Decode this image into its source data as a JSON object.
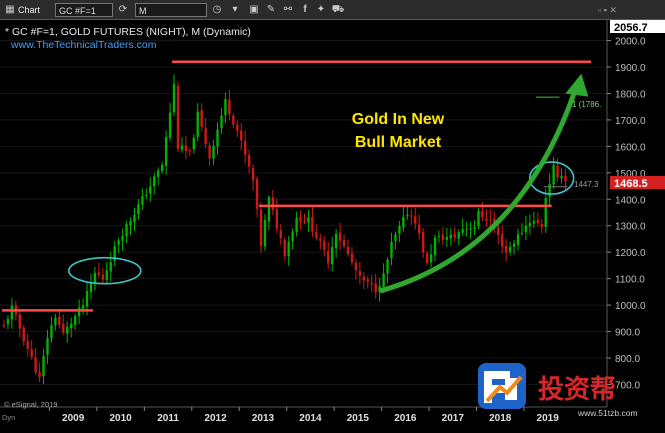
{
  "toolbar": {
    "app_label": "Chart",
    "symbol_value": "GC #F=1",
    "interval_value": "M",
    "icons": [
      "chart-icon",
      "chevron-down-icon",
      "refresh-icon",
      "clock-icon",
      "save-icon",
      "tools-icon",
      "link-icon",
      "facebook-icon",
      "twitter-icon",
      "cart-icon"
    ]
  },
  "header": {
    "title": "* GC #F=1, GOLD FUTURES (NIGHT), M (Dynamic)",
    "website": "www.TheTechnicalTraders.com"
  },
  "annotation": {
    "line1": "Gold In New",
    "line2": "Bull Market"
  },
  "price_labels": {
    "top": "2056.7",
    "last": "1468.5",
    "level": "1447.3",
    "fib": "1 (1786.",
    "copyright": "© eSignal, 2019",
    "corner": "Dyn"
  },
  "colors": {
    "background": "#000000",
    "up_candle": "#00b400",
    "down_candle": "#d01818",
    "resistance_line": "#ff4a4a",
    "arrow": "#2fa82f",
    "ellipse": "#3fc6c6",
    "annotation_text": "#ffe600",
    "last_price_bg": "#d42020"
  },
  "watermark": {
    "brand": "投资帮",
    "url": "www.51tzb.com"
  },
  "chart_data": {
    "type": "candlestick",
    "interval": "monthly",
    "x_axis": {
      "tick_labels": [
        "2009",
        "2010",
        "2011",
        "2012",
        "2013",
        "2014",
        "2015",
        "2016",
        "2017",
        "2018",
        "2019"
      ]
    },
    "y_axis": {
      "range": [
        700,
        2056.7
      ],
      "tick_labels": [
        "700.0",
        "800.0",
        "900.0",
        "1000.0",
        "1100.0",
        "1200.0",
        "1300.0",
        "1400.0",
        "1500.0",
        "1600.0",
        "1700.0",
        "1800.0",
        "1900.0",
        "2000.0"
      ]
    },
    "anchors": [
      [
        "2008-01",
        920
      ],
      [
        "2008-03",
        990
      ],
      [
        "2008-10",
        720
      ],
      [
        "2008-12",
        880
      ],
      [
        "2009-02",
        960
      ],
      [
        "2009-04",
        890
      ],
      [
        "2009-09",
        1000
      ],
      [
        "2009-12",
        1120
      ],
      [
        "2010-02",
        1100
      ],
      [
        "2010-06",
        1250
      ],
      [
        "2010-12",
        1400
      ],
      [
        "2011-05",
        1530
      ],
      [
        "2011-08",
        1830
      ],
      [
        "2011-09",
        1600
      ],
      [
        "2011-12",
        1570
      ],
      [
        "2012-02",
        1720
      ],
      [
        "2012-05",
        1560
      ],
      [
        "2012-09",
        1770
      ],
      [
        "2012-12",
        1660
      ],
      [
        "2013-04",
        1470
      ],
      [
        "2013-06",
        1230
      ],
      [
        "2013-08",
        1400
      ],
      [
        "2013-12",
        1200
      ],
      [
        "2014-03",
        1330
      ],
      [
        "2014-06",
        1320
      ],
      [
        "2014-11",
        1170
      ],
      [
        "2015-01",
        1280
      ],
      [
        "2015-07",
        1100
      ],
      [
        "2015-11",
        1060
      ],
      [
        "2016-01",
        1110
      ],
      [
        "2016-03",
        1230
      ],
      [
        "2016-07",
        1350
      ],
      [
        "2016-09",
        1320
      ],
      [
        "2016-12",
        1150
      ],
      [
        "2017-02",
        1250
      ],
      [
        "2017-07",
        1260
      ],
      [
        "2017-09",
        1290
      ],
      [
        "2017-12",
        1300
      ],
      [
        "2018-01",
        1345
      ],
      [
        "2018-04",
        1320
      ],
      [
        "2018-08",
        1200
      ],
      [
        "2018-12",
        1280
      ],
      [
        "2019-02",
        1320
      ],
      [
        "2019-05",
        1300
      ],
      [
        "2019-06",
        1410
      ],
      [
        "2019-08",
        1520
      ],
      [
        "2019-09",
        1470
      ],
      [
        "2019-10",
        1500
      ],
      [
        "2019-11",
        1468.5
      ]
    ],
    "overlays": {
      "resistance_lines": [
        {
          "y": 980,
          "from": "2008-01",
          "to": "2009-12"
        },
        {
          "y": 1375,
          "from": "2013-06",
          "to": "2019-08"
        },
        {
          "y": 1920,
          "from": "2011-08",
          "to": "2020-06"
        }
      ],
      "horizontal_levels": [
        {
          "y": 1786,
          "from": "2019-04",
          "to": "2019-10"
        },
        {
          "y": 1447.3,
          "from": "2019-06",
          "to": "2019-12"
        }
      ],
      "ellipses": [
        {
          "center": [
            "2010-03",
            1130
          ],
          "note": "breakout 2009-2010"
        },
        {
          "center": [
            "2019-08",
            1480
          ],
          "note": "breakout 2019"
        }
      ],
      "arrow": {
        "from": [
          "2016-01",
          1055
        ],
        "via": [
          "2018-12",
          1250
        ],
        "to": [
          "2020-03",
          1860
        ]
      }
    }
  }
}
